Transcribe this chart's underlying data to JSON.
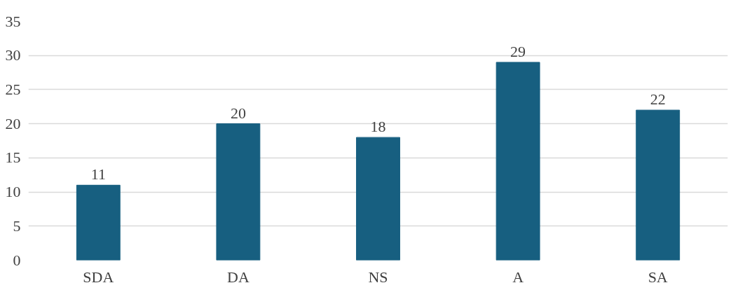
{
  "chart_data": {
    "type": "bar",
    "categories": [
      "SDA",
      "DA",
      "NS",
      "A",
      "SA"
    ],
    "values": [
      11,
      20,
      18,
      29,
      22
    ],
    "color": "#175f80",
    "ylim": [
      0,
      35
    ],
    "yticks": [
      0,
      5,
      10,
      15,
      20,
      25,
      30,
      35
    ],
    "grid": "y",
    "data_labels": true
  }
}
